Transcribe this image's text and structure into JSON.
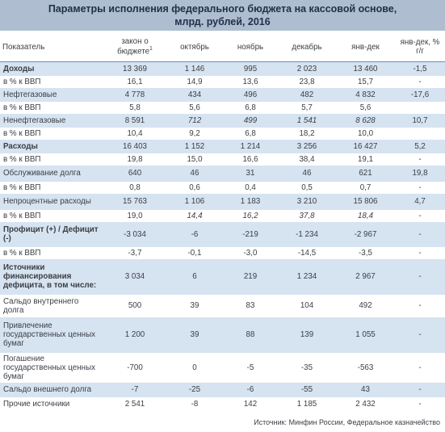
{
  "title_line1": "Параметры исполнения федерального бюджета на кассовой основе,",
  "title_line2": "млрд. рублей, 2016",
  "headers": {
    "indicator": "Показатель",
    "law": "закон о бюджете",
    "law_sup": "1",
    "oct": "октябрь",
    "nov": "ноябрь",
    "dec": "декабрь",
    "ytd": "янв-дек",
    "yoy": "янв-дек, % г/г"
  },
  "rows": [
    {
      "label": "Доходы",
      "bold": true,
      "shade": true,
      "v": [
        "13 369",
        "1 146",
        "995",
        "2 023",
        "13 460",
        "-1,5"
      ]
    },
    {
      "label": "в % к ВВП",
      "shade": false,
      "v": [
        "16,1",
        "14,9",
        "13,6",
        "23,8",
        "15,7",
        "-"
      ]
    },
    {
      "label": "Нефтегазовые",
      "shade": true,
      "v": [
        "4 778",
        "434",
        "496",
        "482",
        "4 832",
        "-17,6"
      ]
    },
    {
      "label": "в % к ВВП",
      "shade": false,
      "v": [
        "5,8",
        "5,6",
        "6,8",
        "5,7",
        "5,6",
        ""
      ]
    },
    {
      "label": "Ненефтегазовые",
      "shade": true,
      "v": [
        "8 591",
        "712",
        "499",
        "1 541",
        "8 628",
        "10,7"
      ],
      "italic": [
        1,
        2,
        3,
        4
      ]
    },
    {
      "label": "в % к ВВП",
      "shade": false,
      "v": [
        "10,4",
        "9,2",
        "6,8",
        "18,2",
        "10,0",
        ""
      ]
    },
    {
      "label": "Расходы",
      "bold": true,
      "shade": true,
      "v": [
        "16 403",
        "1 152",
        "1 214",
        "3 256",
        "16 427",
        "5,2"
      ]
    },
    {
      "label": "в % к ВВП",
      "shade": false,
      "v": [
        "19,8",
        "15,0",
        "16,6",
        "38,4",
        "19,1",
        "-"
      ]
    },
    {
      "label": "Обслуживание долга",
      "shade": true,
      "v": [
        "640",
        "46",
        "31",
        "46",
        "621",
        "19,8"
      ]
    },
    {
      "label": "в % к ВВП",
      "shade": false,
      "v": [
        "0,8",
        "0,6",
        "0,4",
        "0,5",
        "0,7",
        "-"
      ]
    },
    {
      "label": "Непроцентные расходы",
      "shade": true,
      "v": [
        "15 763",
        "1 106",
        "1 183",
        "3 210",
        "15 806",
        "4,7"
      ]
    },
    {
      "label": "в % к ВВП",
      "shade": false,
      "v": [
        "19,0",
        "14,4",
        "16,2",
        "37,8",
        "18,4",
        "-"
      ],
      "italic": [
        1,
        2,
        3,
        4
      ]
    },
    {
      "label": "Профицит (+) / Дефицит (-)",
      "bold": true,
      "shade": true,
      "v": [
        "-3 034",
        "-6",
        "-219",
        "-1 234",
        "-2 967",
        "-"
      ]
    },
    {
      "label": "в % к ВВП",
      "shade": false,
      "v": [
        "-3,7",
        "-0,1",
        "-3,0",
        "-14,5",
        "-3,5",
        "-"
      ]
    },
    {
      "label": "Источники финансирования дефицита, в том числе:",
      "bold": true,
      "shade": true,
      "v": [
        "3 034",
        "6",
        "219",
        "1 234",
        "2 967",
        "-"
      ]
    },
    {
      "label": "Сальдо внутреннего долга",
      "shade": false,
      "v": [
        "500",
        "39",
        "83",
        "104",
        "492",
        "-"
      ]
    },
    {
      "label": "Привлечение государственных ценных бумаг",
      "shade": true,
      "v": [
        "1 200",
        "39",
        "88",
        "139",
        "1 055",
        "-"
      ]
    },
    {
      "label": "Погашение государственных ценных бумаг",
      "shade": false,
      "v": [
        "-700",
        "0",
        "-5",
        "-35",
        "-563",
        "-"
      ]
    },
    {
      "label": "Сальдо внешнего долга",
      "shade": true,
      "v": [
        "-7",
        "-25",
        "-6",
        "-55",
        "43",
        "-"
      ]
    },
    {
      "label": "Прочие источники",
      "shade": false,
      "v": [
        "2 541",
        "-8",
        "142",
        "1 185",
        "2 432",
        "-"
      ]
    }
  ],
  "source": "Источник: Минфин России, Федеральное казначейство",
  "colors": {
    "title_bg": "#aebed0",
    "row_shade": "#d6e3f0",
    "header_rule": "#6f8cb0"
  }
}
